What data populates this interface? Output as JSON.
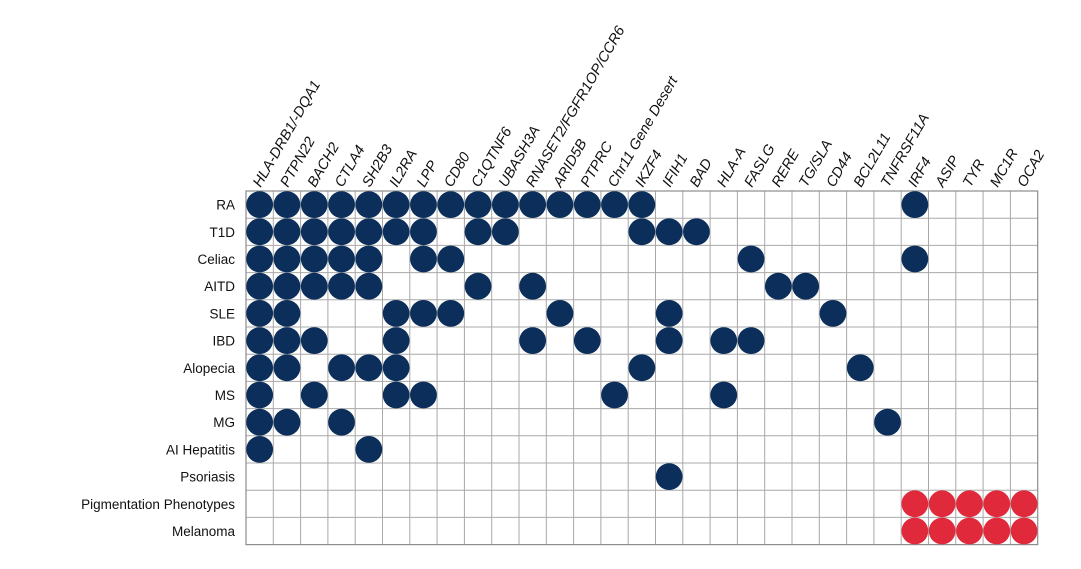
{
  "chart_data": {
    "type": "table",
    "title": "",
    "genes": [
      "HLA-DRB1/-DQA1",
      "PTPN22",
      "BACH2",
      "CTLA4",
      "SH2B3",
      "IL2RA",
      "LPP",
      "CD80",
      "C1QTNF6",
      "UBASH3A",
      "RNASET2/FGFR1OP/CCR6",
      "ARID5B",
      "PTPRC",
      "Chr11 Gene Desert",
      "IKZF4",
      "IFIH1",
      "BAD",
      "HLA-A",
      "FASLG",
      "RERE",
      "TG/SLA",
      "CD44",
      "BCL2L11",
      "TNFRSF11A",
      "IRF4",
      "ASIP",
      "TYR",
      "MC1R",
      "OCA2"
    ],
    "diseases": [
      "RA",
      "T1D",
      "Celiac",
      "AITD",
      "SLE",
      "IBD",
      "Alopecia",
      "MS",
      "MG",
      "AI Hepatitis",
      "Psoriasis",
      "Pigmentation Phenotypes",
      "Melanoma"
    ],
    "associations": [
      {
        "disease": "RA",
        "genes": [
          0,
          1,
          2,
          3,
          4,
          5,
          6,
          7,
          8,
          9,
          10,
          11,
          12,
          13,
          14,
          24
        ],
        "group": "autoimmune"
      },
      {
        "disease": "T1D",
        "genes": [
          0,
          1,
          2,
          3,
          4,
          5,
          6,
          8,
          9,
          14,
          15,
          16
        ],
        "group": "autoimmune"
      },
      {
        "disease": "Celiac",
        "genes": [
          0,
          1,
          2,
          3,
          4,
          6,
          7,
          18,
          24
        ],
        "group": "autoimmune"
      },
      {
        "disease": "AITD",
        "genes": [
          0,
          1,
          2,
          3,
          4,
          8,
          10,
          19,
          20
        ],
        "group": "autoimmune"
      },
      {
        "disease": "SLE",
        "genes": [
          0,
          1,
          5,
          6,
          7,
          11,
          15,
          21
        ],
        "group": "autoimmune"
      },
      {
        "disease": "IBD",
        "genes": [
          0,
          1,
          2,
          5,
          10,
          12,
          15,
          17,
          18
        ],
        "group": "autoimmune"
      },
      {
        "disease": "Alopecia",
        "genes": [
          0,
          1,
          3,
          4,
          5,
          14,
          22
        ],
        "group": "autoimmune"
      },
      {
        "disease": "MS",
        "genes": [
          0,
          2,
          5,
          6,
          13,
          17
        ],
        "group": "autoimmune"
      },
      {
        "disease": "MG",
        "genes": [
          0,
          1,
          3,
          23
        ],
        "group": "autoimmune"
      },
      {
        "disease": "AI Hepatitis",
        "genes": [
          0,
          4
        ],
        "group": "autoimmune"
      },
      {
        "disease": "Psoriasis",
        "genes": [
          15
        ],
        "group": "autoimmune"
      },
      {
        "disease": "Pigmentation Phenotypes",
        "genes": [
          24,
          25,
          26,
          27,
          28
        ],
        "group": "pigmentation"
      },
      {
        "disease": "Melanoma",
        "genes": [
          24,
          25,
          26,
          27,
          28
        ],
        "group": "pigmentation"
      }
    ],
    "colors": {
      "autoimmune": "#0b2e5a",
      "pigmentation": "#e0293b"
    }
  }
}
